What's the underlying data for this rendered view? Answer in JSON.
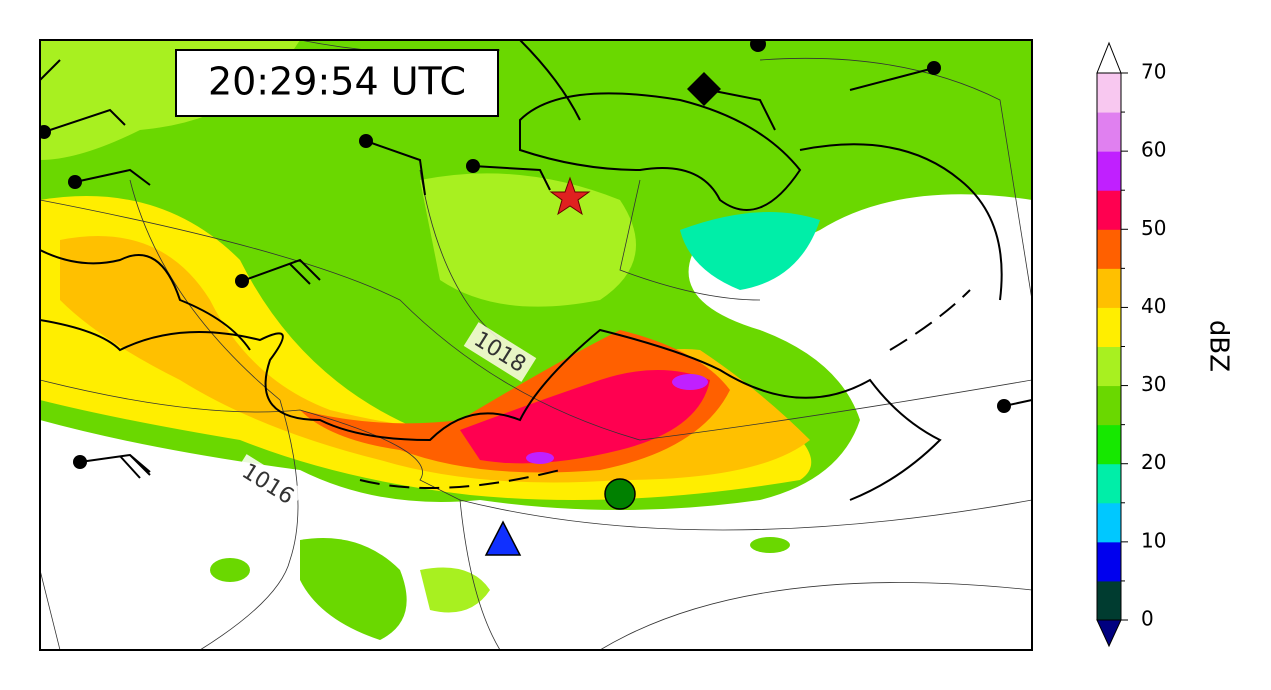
{
  "map": {
    "timestamp": "20:29:54 UTC",
    "contour_labels": [
      "1018",
      "1016"
    ],
    "colorbar": {
      "label": "dBZ",
      "clim": [
        0,
        70
      ],
      "ticks": [
        0,
        10,
        20,
        30,
        40,
        50,
        60,
        70
      ],
      "colors": [
        "#003c30",
        "#0000ee",
        "#00c8ff",
        "#00eea8",
        "#16e800",
        "#6ad800",
        "#a8f020",
        "#ffee00",
        "#ffc000",
        "#ff6000",
        "#ff0050",
        "#c020ff",
        "#e080f0",
        "#f8c8f0"
      ],
      "under_color": "#000080",
      "over_color": "#ffffff"
    }
  }
}
